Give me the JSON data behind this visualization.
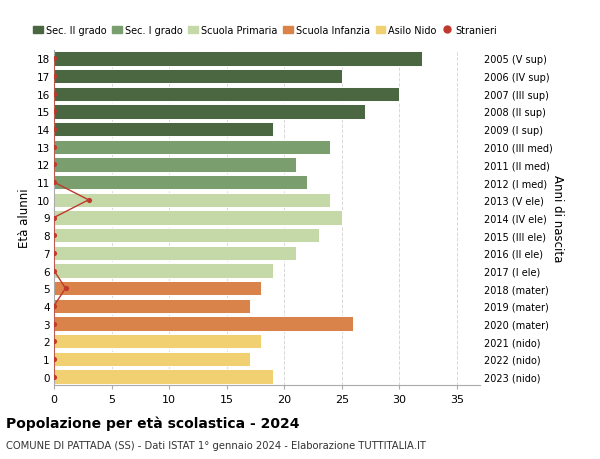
{
  "ages": [
    18,
    17,
    16,
    15,
    14,
    13,
    12,
    11,
    10,
    9,
    8,
    7,
    6,
    5,
    4,
    3,
    2,
    1,
    0
  ],
  "values": [
    32,
    25,
    30,
    27,
    19,
    24,
    21,
    22,
    24,
    25,
    23,
    21,
    19,
    18,
    17,
    26,
    18,
    17,
    19
  ],
  "stranieri": [
    0,
    0,
    0,
    0,
    0,
    0,
    0,
    0,
    3,
    0,
    0,
    0,
    0,
    1,
    0,
    0,
    0,
    0,
    0
  ],
  "bar_colors": [
    "#4a6741",
    "#4a6741",
    "#4a6741",
    "#4a6741",
    "#4a6741",
    "#7a9e6e",
    "#7a9e6e",
    "#7a9e6e",
    "#c5d9a8",
    "#c5d9a8",
    "#c5d9a8",
    "#c5d9a8",
    "#c5d9a8",
    "#d9824a",
    "#d9824a",
    "#d9824a",
    "#f0d070",
    "#f0d070",
    "#f0d070"
  ],
  "right_labels": [
    "2005 (V sup)",
    "2006 (IV sup)",
    "2007 (III sup)",
    "2008 (II sup)",
    "2009 (I sup)",
    "2010 (III med)",
    "2011 (II med)",
    "2012 (I med)",
    "2013 (V ele)",
    "2014 (IV ele)",
    "2015 (III ele)",
    "2016 (II ele)",
    "2017 (I ele)",
    "2018 (mater)",
    "2019 (mater)",
    "2020 (mater)",
    "2021 (nido)",
    "2022 (nido)",
    "2023 (nido)"
  ],
  "legend_labels": [
    "Sec. II grado",
    "Sec. I grado",
    "Scuola Primaria",
    "Scuola Infanzia",
    "Asilo Nido",
    "Stranieri"
  ],
  "legend_colors": [
    "#4a6741",
    "#7a9e6e",
    "#c5d9a8",
    "#d9824a",
    "#f0d070",
    "#c0392b"
  ],
  "title": "Popolazione per età scolastica - 2024",
  "subtitle": "COMUNE DI PATTADA (SS) - Dati ISTAT 1° gennaio 2024 - Elaborazione TUTTITALIA.IT",
  "xlabel_right": "Anni di nascita",
  "ylabel": "Età alunni",
  "xlim": [
    0,
    37
  ],
  "stranieri_color": "#c0392b",
  "background_color": "#ffffff",
  "grid_color": "#d8d8d8"
}
